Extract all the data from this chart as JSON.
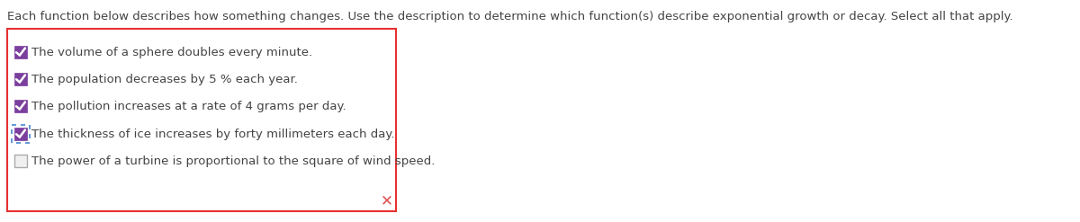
{
  "title": "Each function below describes how something changes. Use the description to determine which function(s) describe exponential growth or decay. Select all that apply.",
  "title_fontsize": 9.5,
  "title_color": "#444444",
  "bg_color": "#ffffff",
  "box_border_color": "#e83030",
  "items": [
    {
      "text": "The volume of a sphere doubles every minute.",
      "checked": true,
      "dotted_border": false
    },
    {
      "text": "The population decreases by 5 % each year.",
      "checked": true,
      "dotted_border": false
    },
    {
      "text": "The pollution increases at a rate of 4 grams per day.",
      "checked": true,
      "dotted_border": false
    },
    {
      "text": "The thickness of ice increases by forty millimeters each day.",
      "checked": true,
      "dotted_border": true
    },
    {
      "text": "The power of a turbine is proportional to the square of wind speed.",
      "checked": false,
      "dotted_border": false
    }
  ],
  "checkbox_filled_color": "#7B3F9E",
  "checkbox_check_color": "#ffffff",
  "checkbox_border_color": "#aaaaaa",
  "item_text_color": "#444444",
  "item_fontsize": 9.5,
  "x_mark_color": "#e05050",
  "dotted_border_color": "#4488cc"
}
